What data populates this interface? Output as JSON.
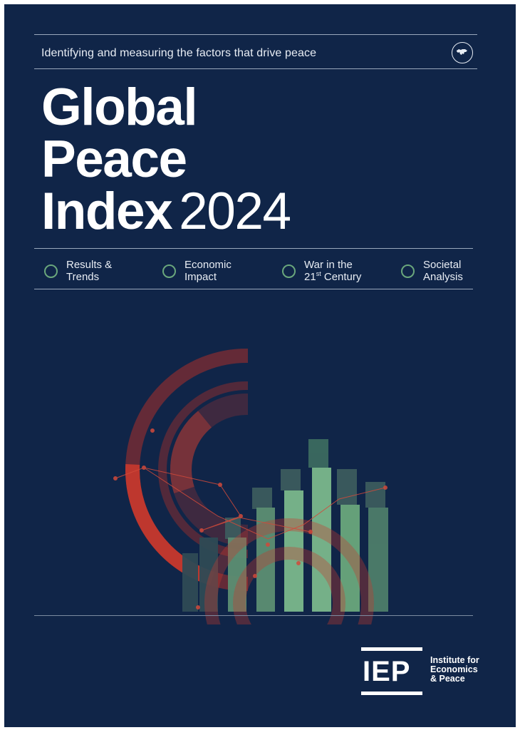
{
  "cover": {
    "tagline": "Identifying and measuring the factors that drive peace",
    "title_line1": "Global",
    "title_line2": "Peace",
    "title_line3": "Index",
    "title_year": "2024",
    "sections": [
      {
        "label": "Results &\nTrends",
        "icon": "ring-icon"
      },
      {
        "label": "Economic\nImpact",
        "icon": "ring-icon"
      },
      {
        "label_main": "War in the\n21",
        "label_sup": "st",
        "label_tail": " Century",
        "icon": "ring-icon"
      },
      {
        "label": "Societal\nAnalysis",
        "icon": "ring-icon"
      }
    ],
    "logo_icon": "world-map-icon",
    "colors": {
      "background": "#102548",
      "text": "#ffffff",
      "accent_green": "#6aa77c",
      "accent_red": "#c8392e"
    }
  },
  "publisher": {
    "logo_text": "IEP",
    "name": "Institute for\nEconomics\n& Peace"
  }
}
